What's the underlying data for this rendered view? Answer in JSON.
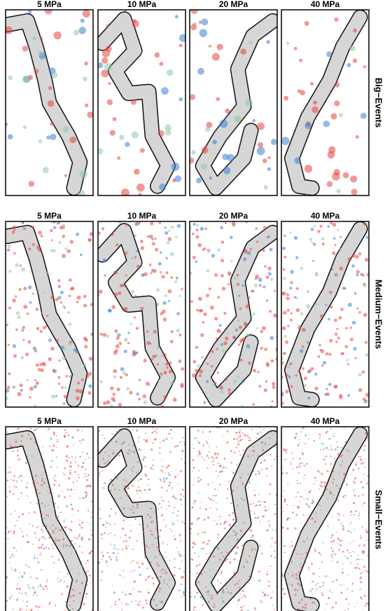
{
  "rows": [
    {
      "label": "Big−Events",
      "panels": [
        "5 MPa",
        "10 MPa",
        "20 MPa",
        "40 MPa"
      ]
    },
    {
      "label": "Medium−Events",
      "panels": [
        "5 MPa",
        "10 MPa",
        "20 MPa",
        "40 MPa"
      ]
    },
    {
      "label": "Small−Events",
      "panels": [
        "5 MPa",
        "10 MPa",
        "20 MPa",
        "40 MPa"
      ]
    }
  ]
}
